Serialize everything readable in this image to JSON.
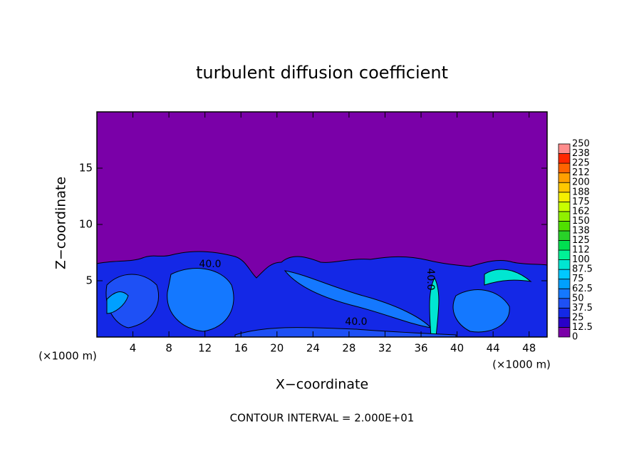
{
  "chart_data": {
    "type": "contour",
    "title": "turbulent diffusion coefficient",
    "x_label": "X−coordinate",
    "y_label": "Z−coordinate",
    "x_unit_label": "(×1000 m)",
    "x_unit_label_right": "(×1000 m)",
    "footnote": "CONTOUR INTERVAL = 2.000E+01",
    "xlim": [
      0,
      50
    ],
    "ylim": [
      0,
      20
    ],
    "xticks": [
      4,
      8,
      12,
      16,
      20,
      24,
      28,
      32,
      36,
      40,
      44,
      48
    ],
    "yticks": [
      5,
      10,
      15
    ],
    "contour_labels": [
      "40.0",
      "40.0",
      "40.0"
    ],
    "background_color": "#7a00a8",
    "colorbar": {
      "levels": [
        0,
        12.5,
        25,
        37.5,
        50,
        62.5,
        75,
        87.5,
        100,
        {
          "value": 112.5,
          "label": "112"
        },
        125,
        {
          "value": 137.5,
          "label": "138"
        },
        150,
        {
          "value": 162.5,
          "label": "162"
        },
        175,
        {
          "value": 187.5,
          "label": "188"
        },
        200,
        {
          "value": 212.5,
          "label": "212"
        },
        225,
        {
          "value": 237.5,
          "label": "238"
        },
        250
      ],
      "colors": [
        "#7a00a8",
        "#2a00c8",
        "#1428e6",
        "#1e50f5",
        "#1478ff",
        "#00a0ff",
        "#00c8ff",
        "#00e6d2",
        "#00f096",
        "#00e050",
        "#28d228",
        "#50e000",
        "#90f000",
        "#c8ff00",
        "#f5f000",
        "#ffc800",
        "#ffa000",
        "#ff6400",
        "#ff2800",
        "#ff8c8c"
      ]
    }
  }
}
